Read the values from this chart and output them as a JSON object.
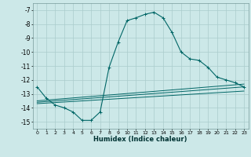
{
  "xlabel": "Humidex (Indice chaleur)",
  "background_color": "#cce8e8",
  "grid_color": "#aacccc",
  "line_color": "#006666",
  "xlim": [
    -0.5,
    23.5
  ],
  "ylim": [
    -15.5,
    -6.5
  ],
  "yticks": [
    -7,
    -8,
    -9,
    -10,
    -11,
    -12,
    -13,
    -14,
    -15
  ],
  "xticks": [
    0,
    1,
    2,
    3,
    4,
    5,
    6,
    7,
    8,
    9,
    10,
    11,
    12,
    13,
    14,
    15,
    16,
    17,
    18,
    19,
    20,
    21,
    22,
    23
  ],
  "curve1_x": [
    0,
    1,
    2,
    3,
    4,
    5,
    6,
    7,
    8,
    9,
    10,
    11,
    12,
    13,
    14,
    15,
    16,
    17,
    18,
    19,
    20,
    21,
    22,
    23
  ],
  "curve1_y": [
    -12.5,
    -13.3,
    -13.8,
    -14.0,
    -14.3,
    -14.9,
    -14.9,
    -14.3,
    -11.1,
    -9.3,
    -7.75,
    -7.55,
    -7.3,
    -7.15,
    -7.55,
    -8.6,
    -10.0,
    -10.5,
    -10.6,
    -11.1,
    -11.8,
    -12.0,
    -12.2,
    -12.5
  ],
  "line1_x": [
    0,
    23
  ],
  "line1_y": [
    -13.5,
    -12.3
  ],
  "line2_x": [
    0,
    23
  ],
  "line2_y": [
    -13.6,
    -12.5
  ],
  "line3_x": [
    0,
    23
  ],
  "line3_y": [
    -13.7,
    -12.8
  ]
}
